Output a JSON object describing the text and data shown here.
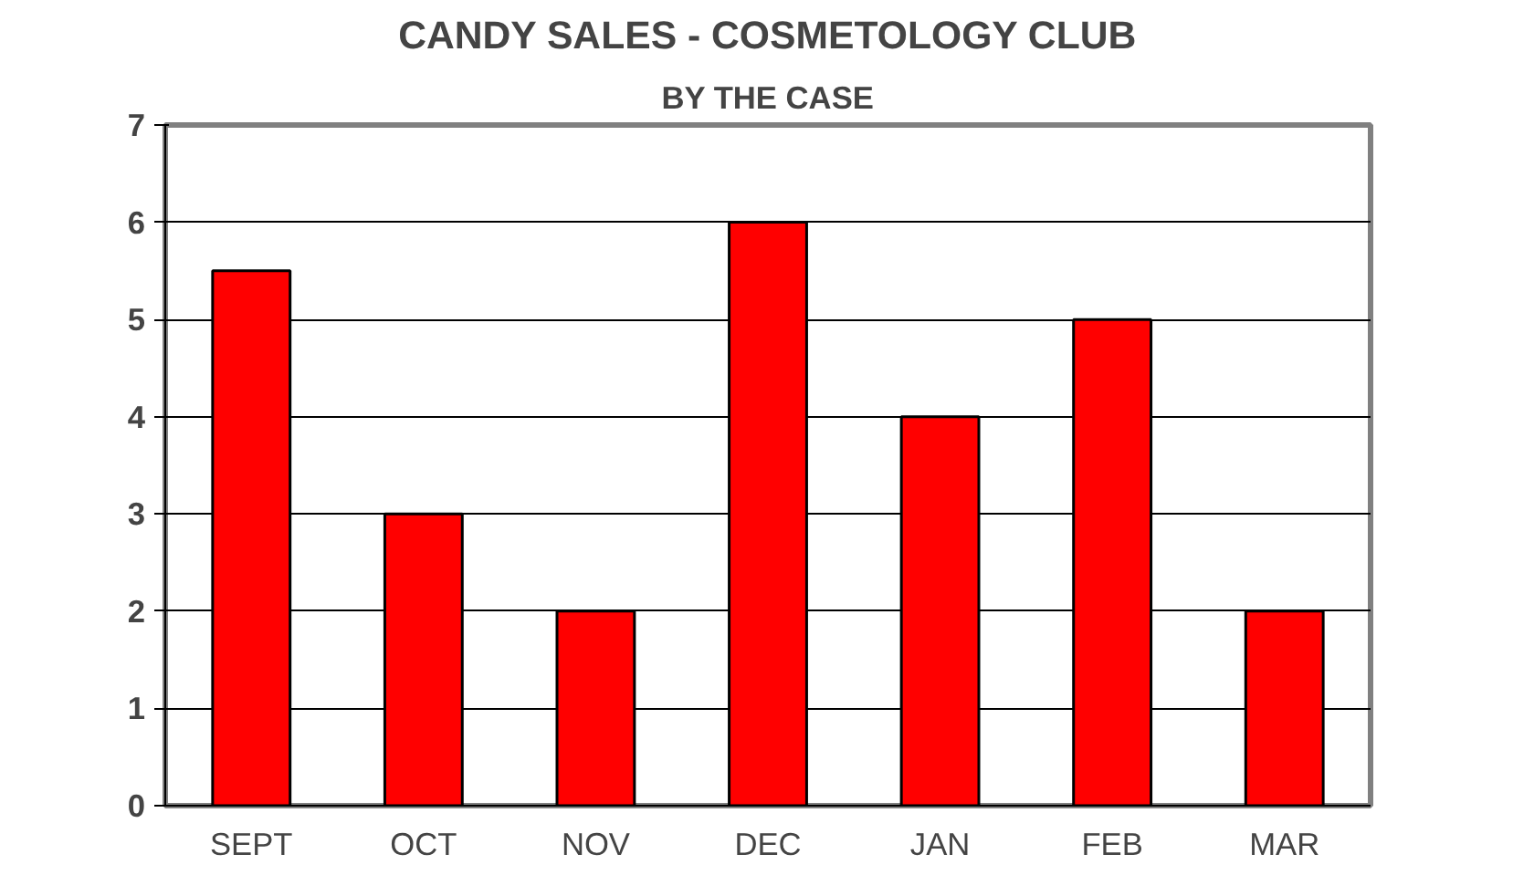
{
  "chart_data": {
    "type": "bar",
    "title": "CANDY SALES - COSMETOLOGY CLUB",
    "subtitle": "BY THE CASE",
    "categories": [
      "SEPT",
      "OCT",
      "NOV",
      "DEC",
      "JAN",
      "FEB",
      "MAR"
    ],
    "values": [
      5.5,
      3,
      2,
      6,
      4,
      5,
      2
    ],
    "color": "#ff0000",
    "ylim": [
      0,
      7
    ],
    "yticks": [
      0,
      1,
      2,
      3,
      4,
      5,
      6,
      7
    ],
    "grid": "y"
  }
}
